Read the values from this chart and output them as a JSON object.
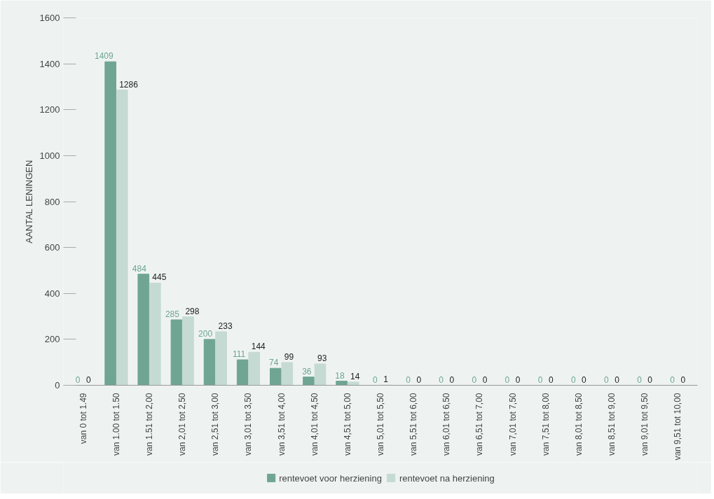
{
  "chart_data": {
    "type": "bar",
    "ylabel": "AANTAL LENINGEN",
    "categories": [
      "van 0 tot 1.49",
      "van 1.00 tot 1.50",
      "van 1.51 tot 2,00",
      "van 2,01 tot 2,50",
      "van 2,51 tot 3,00",
      "van 3,01 tot 3,50",
      "van 3,51 tot 4,00",
      "van 4,01 tot 4,50",
      "van 4,51 tot 5,00",
      "van 5,01 tot 5,50",
      "van 5,51 tot 6,00",
      "van 6,01 tot 6,50",
      "van 6,51 tot 7,00",
      "van 7,01 tot 7,50",
      "van 7,51 tot 8,00",
      "van 8,01 tot 8,50",
      "van 8,51 tot 9,00",
      "van 9,01 tot 9,50",
      "van 9,51 tot 10,00"
    ],
    "series": [
      {
        "name": "rentevoet voor herziening",
        "color": "#6fa592",
        "values": [
          0,
          1409,
          484,
          285,
          200,
          111,
          74,
          36,
          18,
          0,
          0,
          0,
          0,
          0,
          0,
          0,
          0,
          0,
          0
        ]
      },
      {
        "name": "rentevoet na herziening",
        "color": "#c5dad2",
        "values": [
          0,
          1286,
          445,
          298,
          233,
          144,
          99,
          93,
          14,
          1,
          0,
          0,
          0,
          0,
          0,
          0,
          0,
          0,
          0
        ]
      }
    ],
    "ylim": [
      0,
      1600
    ],
    "yticks": [
      0,
      200,
      400,
      600,
      800,
      1000,
      1200,
      1400,
      1600
    ],
    "data_labels": true,
    "grid": false,
    "legend": "bottom"
  }
}
